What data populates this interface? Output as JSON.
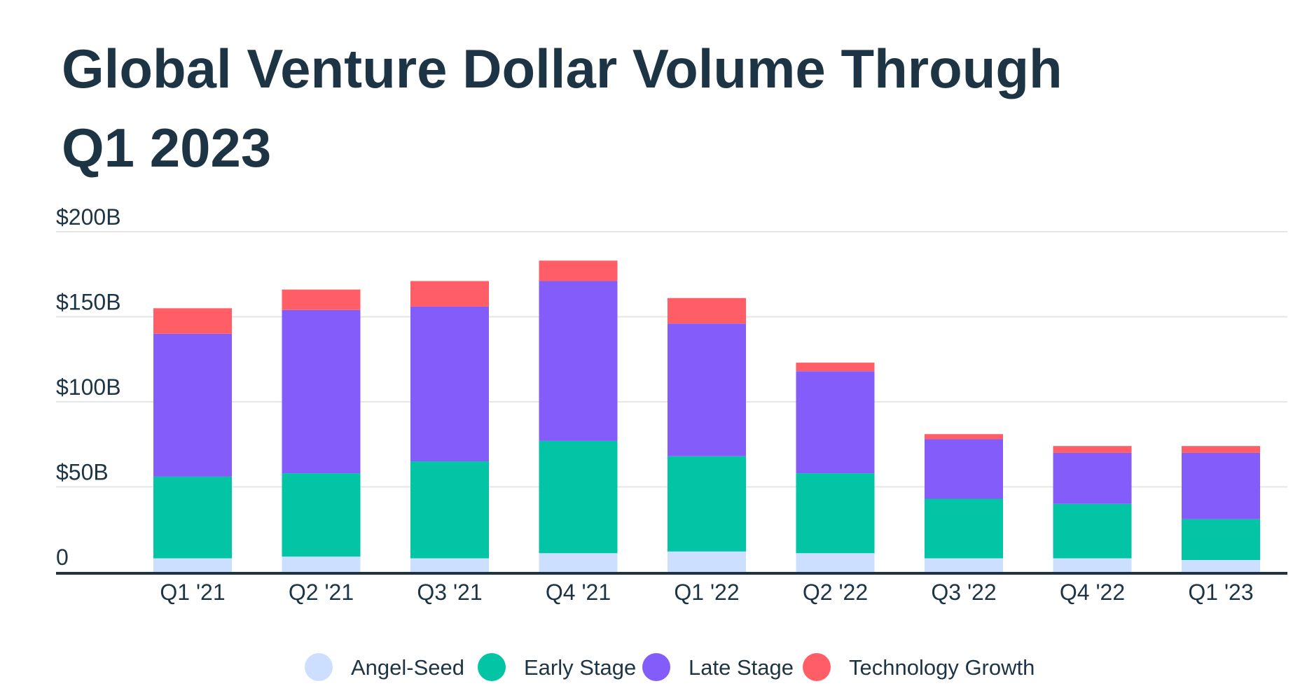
{
  "chart_data": {
    "type": "bar",
    "stacked": true,
    "title_lines": [
      "Global Venture Dollar Volume Through",
      "Q1 2023"
    ],
    "categories": [
      "Q1 '21",
      "Q2 '21",
      "Q3 '21",
      "Q4 '21",
      "Q1 '22",
      "Q2 '22",
      "Q3 '22",
      "Q4 '22",
      "Q1 '23"
    ],
    "series": [
      {
        "name": "Angel-Seed",
        "color": "#cddfff",
        "values": [
          8,
          9,
          8,
          11,
          12,
          11,
          8,
          8,
          7
        ]
      },
      {
        "name": "Early Stage",
        "color": "#03c4a4",
        "values": [
          48,
          49,
          57,
          66,
          56,
          47,
          35,
          32,
          24
        ]
      },
      {
        "name": "Late Stage",
        "color": "#845cfa",
        "values": [
          84,
          96,
          91,
          94,
          78,
          60,
          35,
          30,
          39
        ]
      },
      {
        "name": "Technology Growth",
        "color": "#ff5e67",
        "values": [
          15,
          12,
          15,
          12,
          15,
          5,
          3,
          4,
          4
        ]
      }
    ],
    "yticks": [
      {
        "value": 0,
        "label": "0"
      },
      {
        "value": 50,
        "label": "$50B"
      },
      {
        "value": 100,
        "label": "$100B"
      },
      {
        "value": 150,
        "label": "$150B"
      },
      {
        "value": 200,
        "label": "$200B"
      }
    ],
    "ylim": [
      0,
      200
    ],
    "grid": true,
    "legend_position": "bottom",
    "colors": {
      "text": "#1d3444",
      "grid": "#e6e6e6",
      "axis": "#1d3444"
    }
  }
}
